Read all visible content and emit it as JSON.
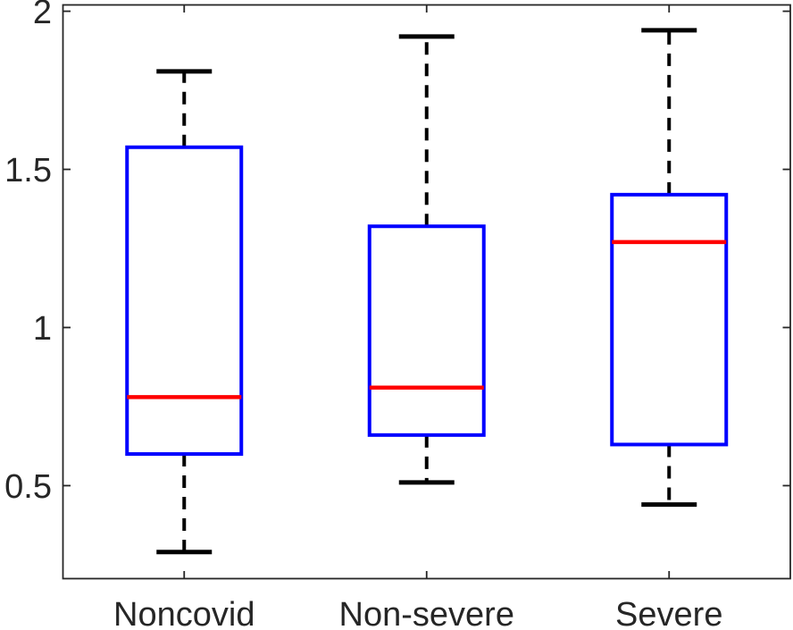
{
  "figure": {
    "background": "#ffffff"
  },
  "chart_data": {
    "type": "boxplot",
    "title": "",
    "xlabel": "",
    "ylabel": "",
    "categories": [
      "Noncovid",
      "Non-severe",
      "Severe"
    ],
    "x_positions": [
      1,
      2,
      3
    ],
    "xlim": [
      0.5,
      3.5
    ],
    "ylim": [
      0.206,
      2.02
    ],
    "yticks": [
      0.5,
      1,
      1.5,
      2
    ],
    "ytick_labels": [
      "0.5",
      "1",
      "1.5",
      "2"
    ],
    "grid": false,
    "legend": null,
    "series": [
      {
        "name": "Noncovid",
        "whisker_low": 0.29,
        "q1": 0.6,
        "median": 0.78,
        "q3": 1.57,
        "whisker_high": 1.81
      },
      {
        "name": "Non-severe",
        "whisker_low": 0.51,
        "q1": 0.66,
        "median": 0.81,
        "q3": 1.32,
        "whisker_high": 1.92
      },
      {
        "name": "Severe",
        "whisker_low": 0.44,
        "q1": 0.63,
        "median": 1.27,
        "q3": 1.42,
        "whisker_high": 1.94
      }
    ],
    "colors": {
      "box": "#0000ff",
      "median": "#ff0000",
      "whisker": "#000000",
      "axis": "#262626",
      "tick_label": "#262626",
      "background": "#ffffff"
    }
  }
}
